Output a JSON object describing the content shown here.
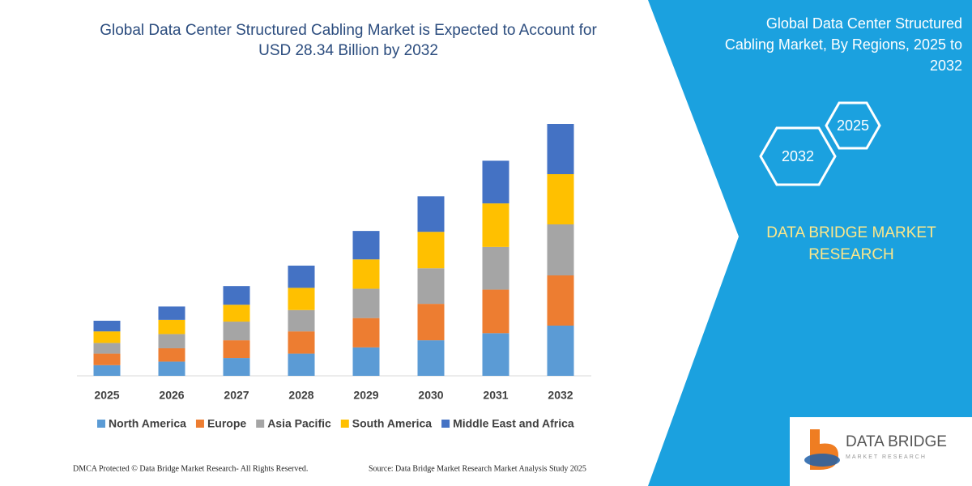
{
  "chart_data": {
    "type": "stacked-bar",
    "title": "Global Data Center Structured Cabling Market is Expected to Account for USD 28.34 Billion by 2032",
    "categories": [
      "2025",
      "2026",
      "2027",
      "2028",
      "2029",
      "2030",
      "2031",
      "2032"
    ],
    "series": [
      {
        "name": "North America",
        "color": "#5b9bd5",
        "values": [
          1.2,
          1.6,
          2.0,
          2.5,
          3.2,
          4.0,
          4.8,
          5.65
        ]
      },
      {
        "name": "Europe",
        "color": "#ed7d31",
        "values": [
          1.3,
          1.5,
          2.0,
          2.5,
          3.3,
          4.1,
          4.9,
          5.65
        ]
      },
      {
        "name": "Asia Pacific",
        "color": "#a5a5a5",
        "values": [
          1.2,
          1.6,
          2.1,
          2.4,
          3.3,
          4.0,
          4.8,
          5.74
        ]
      },
      {
        "name": "South America",
        "color": "#ffc000",
        "values": [
          1.3,
          1.6,
          1.9,
          2.5,
          3.3,
          4.1,
          4.9,
          5.65
        ]
      },
      {
        "name": "Middle East and Africa",
        "color": "#4472c4",
        "values": [
          1.2,
          1.5,
          2.1,
          2.5,
          3.2,
          4.0,
          4.8,
          5.65
        ]
      }
    ],
    "legend": "bottom"
  },
  "panel": {
    "title": [
      "Global Data Center Structured",
      "Cabling Market, By Regions, 2025 to",
      "2032"
    ],
    "hexagons": [
      "2025",
      "2032"
    ],
    "brand": [
      "DATA BRIDGE MARKET",
      "RESEARCH"
    ]
  },
  "logo": {
    "name": "DATA BRIDGE",
    "tagline": "MARKET RESEARCH"
  },
  "footer": {
    "left": "DMCA Protected © Data Bridge Market Research-  All Rights Reserved.",
    "right": "Source: Data Bridge Market Research  Market Analysis Study 2025"
  }
}
